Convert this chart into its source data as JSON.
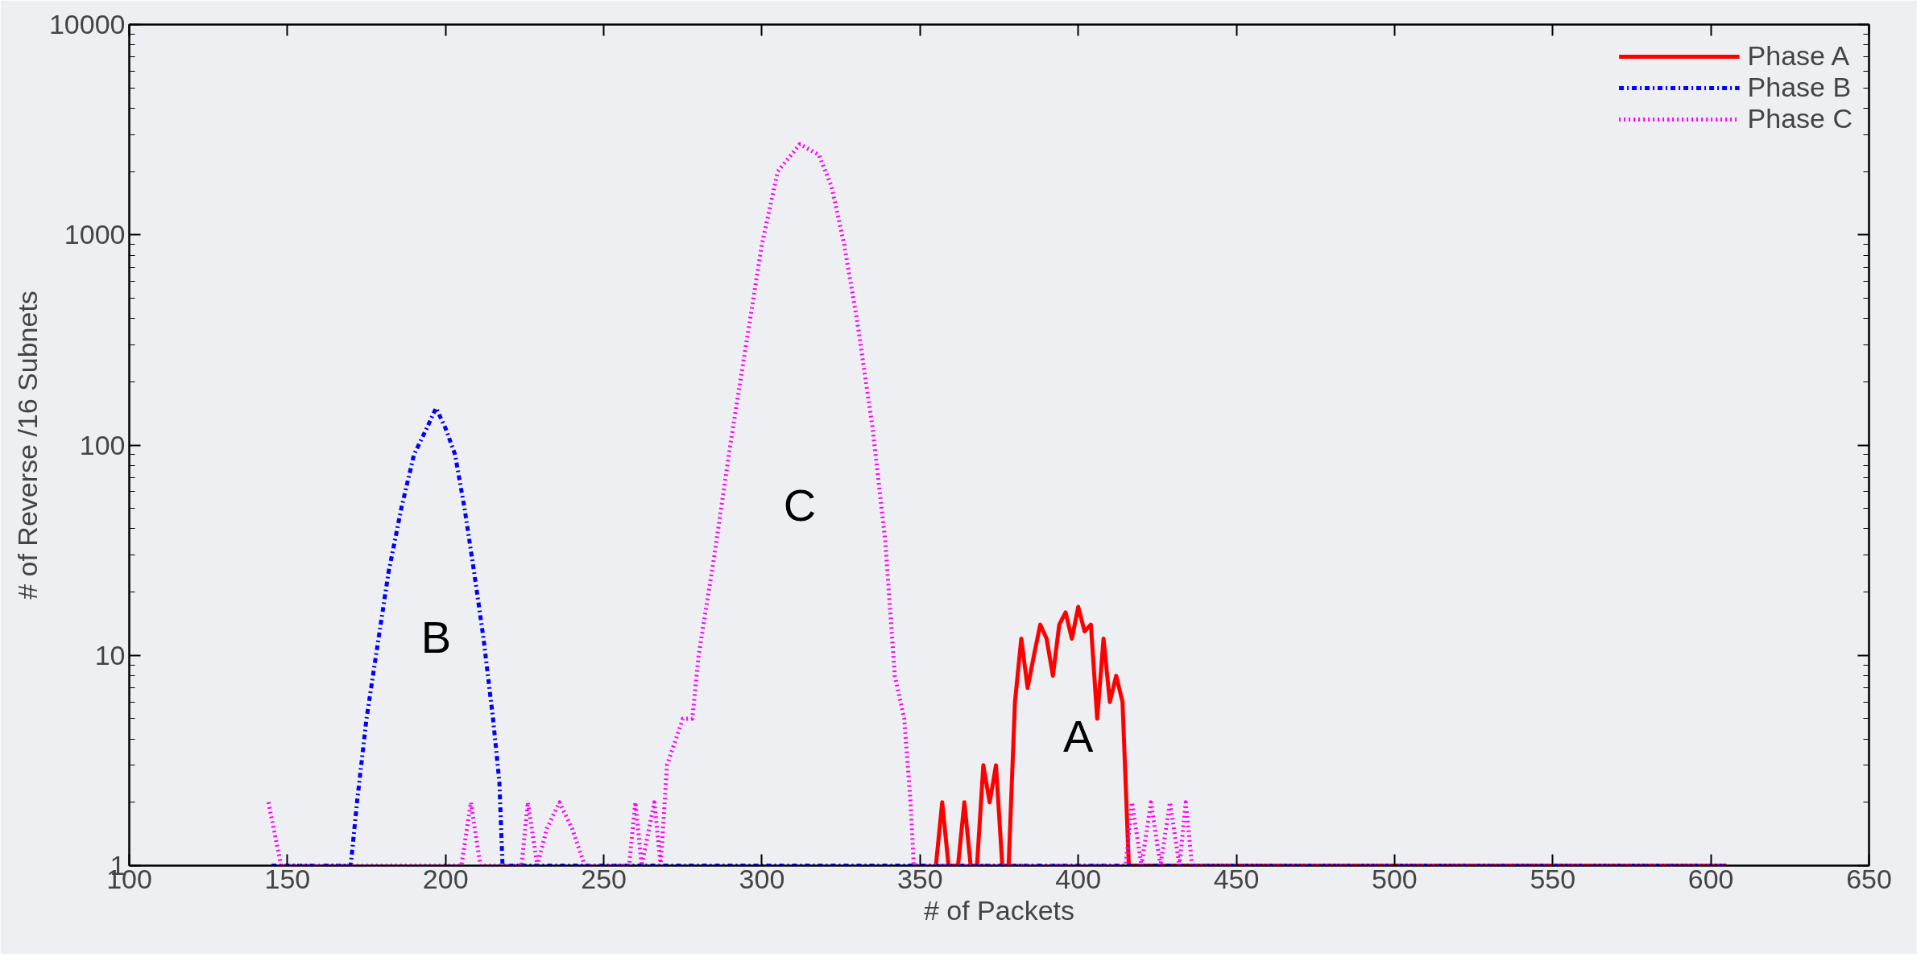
{
  "chart_data": {
    "type": "line",
    "xlabel": "# of Packets",
    "ylabel": "# of Reverse /16 Subnets",
    "log": "y",
    "xlim": [
      100,
      650
    ],
    "ylim": [
      1,
      10000
    ],
    "xticks": [
      100,
      150,
      200,
      250,
      300,
      350,
      400,
      450,
      500,
      550,
      600,
      650
    ],
    "yticks": [
      1,
      10,
      100,
      1000,
      10000
    ],
    "grid": false,
    "legend": "top right",
    "marker": "none",
    "series": [
      {
        "name": "Phase A",
        "color": "#ff0000",
        "line_style": "solid",
        "x": [
          355,
          357,
          359,
          362,
          364,
          366,
          368,
          370,
          372,
          374,
          376,
          378,
          380,
          382,
          384,
          386,
          388,
          390,
          392,
          394,
          396,
          398,
          400,
          402,
          404,
          406,
          408,
          410,
          412,
          414,
          416,
          418,
          605
        ],
        "values": [
          1,
          2,
          1,
          1,
          2,
          1,
          1,
          3,
          2,
          3,
          1,
          1,
          6,
          12,
          7,
          10,
          14,
          12,
          8,
          14,
          16,
          12,
          17,
          13,
          14,
          5,
          12,
          6,
          8,
          6,
          1,
          1,
          1
        ]
      },
      {
        "name": "Phase B",
        "color": "#0000ff",
        "line_style": "dashdot",
        "x": [
          145,
          170,
          172,
          175,
          178,
          182,
          186,
          190,
          194,
          197,
          200,
          203,
          206,
          209,
          212,
          215,
          217,
          218,
          605
        ],
        "values": [
          1,
          1,
          2,
          5,
          10,
          25,
          50,
          90,
          120,
          150,
          120,
          90,
          50,
          25,
          12,
          5,
          2.5,
          1,
          1
        ]
      },
      {
        "name": "Phase C",
        "color": "#ff00ff",
        "line_style": "dotted",
        "x": [
          144,
          148,
          205,
          208,
          211,
          224,
          226,
          229,
          232,
          236,
          240,
          244,
          258,
          260,
          262,
          266,
          268,
          270,
          275,
          278,
          280,
          285,
          290,
          295,
          300,
          305,
          312,
          318,
          322,
          326,
          330,
          335,
          339,
          342,
          345,
          347,
          348,
          415,
          417,
          420,
          423,
          426,
          429,
          432,
          434,
          436,
          605
        ],
        "values": [
          2,
          1,
          1,
          2,
          1,
          1,
          2,
          1,
          1.5,
          2,
          1.5,
          1,
          1,
          2,
          1,
          2,
          1,
          3,
          5,
          5,
          10,
          30,
          100,
          300,
          900,
          2000,
          2700,
          2400,
          1700,
          900,
          400,
          120,
          35,
          8,
          5,
          2,
          1,
          1,
          2,
          1,
          2,
          1,
          2,
          1,
          2,
          1,
          1
        ]
      }
    ],
    "annotations": [
      "A",
      "B",
      "C"
    ]
  }
}
